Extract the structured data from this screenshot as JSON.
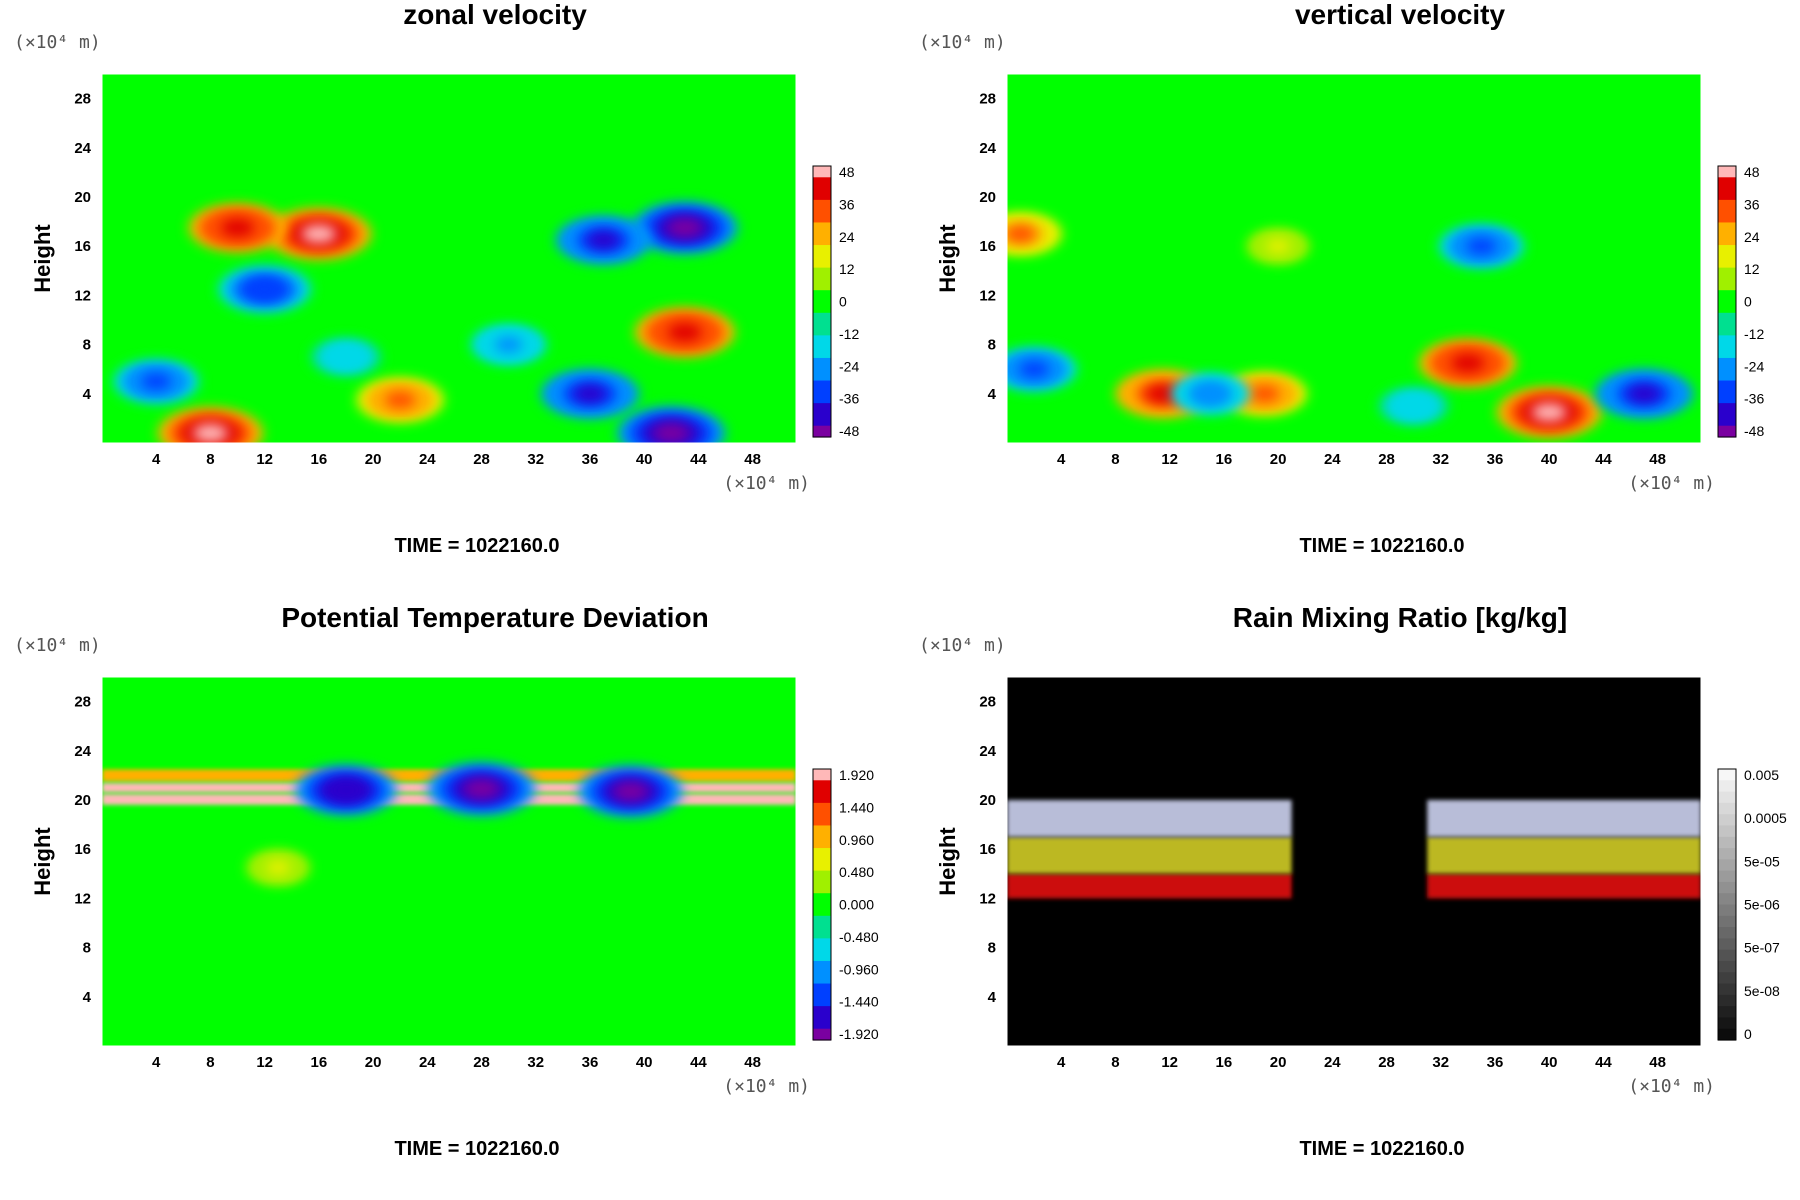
{
  "chart_data": [
    {
      "type": "heatmap",
      "title": "zonal velocity",
      "ylabel": "Height",
      "x_unit": "(×10⁴ m)",
      "y_unit": "(×10⁴ m)",
      "x_ticks": [
        "4",
        "8",
        "12",
        "16",
        "20",
        "24",
        "28",
        "32",
        "36",
        "40",
        "44",
        "48"
      ],
      "y_ticks": [
        "4",
        "8",
        "12",
        "16",
        "20",
        "24",
        "28"
      ],
      "xlim": [
        0,
        51.2
      ],
      "ylim": [
        0,
        30
      ],
      "colorbar": {
        "palette": "rainbow",
        "labels": [
          "48",
          "36",
          "24",
          "12",
          "0",
          "-12",
          "-24",
          "-36",
          "-48"
        ],
        "range": [
          -48,
          48
        ]
      },
      "background_value": 0,
      "features": [
        {
          "x": 16,
          "y": 17,
          "value": 46
        },
        {
          "x": 10,
          "y": 17.5,
          "value": 40
        },
        {
          "x": 43,
          "y": 9,
          "value": 42
        },
        {
          "x": 8,
          "y": 0.8,
          "value": 46
        },
        {
          "x": 22,
          "y": 3.5,
          "value": 32
        },
        {
          "x": 43,
          "y": 17.5,
          "value": -46
        },
        {
          "x": 37,
          "y": 16.5,
          "value": -38
        },
        {
          "x": 12,
          "y": 12.5,
          "value": -36
        },
        {
          "x": 4,
          "y": 5,
          "value": -30
        },
        {
          "x": 36,
          "y": 4,
          "value": -40
        },
        {
          "x": 42,
          "y": 0.8,
          "value": -48
        },
        {
          "x": 30,
          "y": 8,
          "value": -22
        },
        {
          "x": 18,
          "y": 7,
          "value": -18
        }
      ],
      "time_label": "TIME = 1022160.0"
    },
    {
      "type": "heatmap",
      "title": "vertical velocity",
      "ylabel": "Height",
      "x_unit": "(×10⁴ m)",
      "y_unit": "(×10⁴ m)",
      "x_ticks": [
        "4",
        "8",
        "12",
        "16",
        "20",
        "24",
        "28",
        "32",
        "36",
        "40",
        "44",
        "48"
      ],
      "y_ticks": [
        "4",
        "8",
        "12",
        "16",
        "20",
        "24",
        "28"
      ],
      "xlim": [
        0,
        51.2
      ],
      "ylim": [
        0,
        30
      ],
      "colorbar": {
        "palette": "rainbow",
        "labels": [
          "48",
          "36",
          "24",
          "12",
          "0",
          "-12",
          "-24",
          "-36",
          "-48"
        ],
        "range": [
          -48,
          48
        ]
      },
      "background_value": 0,
      "features": [
        {
          "x": 11.5,
          "y": 4,
          "value": 38
        },
        {
          "x": 19,
          "y": 4,
          "value": 30
        },
        {
          "x": 34,
          "y": 6.5,
          "value": 40
        },
        {
          "x": 40,
          "y": 2.5,
          "value": 46
        },
        {
          "x": 1,
          "y": 17,
          "value": 28
        },
        {
          "x": 47,
          "y": 4,
          "value": -40
        },
        {
          "x": 15,
          "y": 4,
          "value": -24
        },
        {
          "x": 2,
          "y": 6,
          "value": -30
        },
        {
          "x": 30,
          "y": 3,
          "value": -18
        },
        {
          "x": 35,
          "y": 16,
          "value": -30
        },
        {
          "x": 20,
          "y": 16,
          "value": 12
        }
      ],
      "time_label": "TIME = 1022160.0"
    },
    {
      "type": "heatmap",
      "title": "Potential Temperature Deviation",
      "ylabel": "Height",
      "x_unit": "(×10⁴ m)",
      "y_unit": "(×10⁴ m)",
      "x_ticks": [
        "4",
        "8",
        "12",
        "16",
        "20",
        "24",
        "28",
        "32",
        "36",
        "40",
        "44",
        "48"
      ],
      "y_ticks": [
        "4",
        "8",
        "12",
        "16",
        "20",
        "24",
        "28"
      ],
      "xlim": [
        0,
        51.2
      ],
      "ylim": [
        0,
        30
      ],
      "colorbar": {
        "palette": "rainbow",
        "labels": [
          "1.920",
          "1.440",
          "0.960",
          "0.480",
          "0.000",
          "-0.480",
          "-0.960",
          "-1.440",
          "-1.920"
        ],
        "range": [
          -1.92,
          1.92
        ]
      },
      "background_value": 0,
      "bands": [
        {
          "y_from": 21.5,
          "y_to": 22.5,
          "value": 1.1
        },
        {
          "y_from": 20.6,
          "y_to": 21.4,
          "value": 1.9
        },
        {
          "y_from": 19.6,
          "y_to": 20.5,
          "value": 1.8
        }
      ],
      "features": [
        {
          "x": 28,
          "y": 20.9,
          "value": -1.92
        },
        {
          "x": 18,
          "y": 20.8,
          "value": -1.7
        },
        {
          "x": 39,
          "y": 20.7,
          "value": -1.8
        },
        {
          "x": 13,
          "y": 14.5,
          "value": 0.5
        }
      ],
      "time_label": "TIME = 1022160.0"
    },
    {
      "type": "heatmap",
      "title": "Rain Mixing Ratio [kg/kg]",
      "ylabel": "Height",
      "x_unit": "(×10⁴ m)",
      "y_unit": "(×10⁴ m)",
      "x_ticks": [
        "4",
        "8",
        "12",
        "16",
        "20",
        "24",
        "28",
        "32",
        "36",
        "40",
        "44",
        "48"
      ],
      "y_ticks": [
        "4",
        "8",
        "12",
        "16",
        "20",
        "24",
        "28"
      ],
      "xlim": [
        0,
        51.2
      ],
      "ylim": [
        0,
        30
      ],
      "colorbar": {
        "palette": "gray",
        "labels": [
          "0.005",
          "0.0005",
          "5e-05",
          "5e-06",
          "5e-07",
          "5e-08",
          "0"
        ]
      },
      "background_color": "#000000",
      "layers": [
        {
          "y_from": 12,
          "y_to": 14,
          "color": "#cc1111"
        },
        {
          "y_from": 14,
          "y_to": 17,
          "color": "#bcb820"
        },
        {
          "y_from": 17,
          "y_to": 20,
          "color": "#b8bdd8"
        }
      ],
      "gap_x": [
        21,
        31
      ],
      "time_label": "TIME = 1022160.0"
    }
  ]
}
